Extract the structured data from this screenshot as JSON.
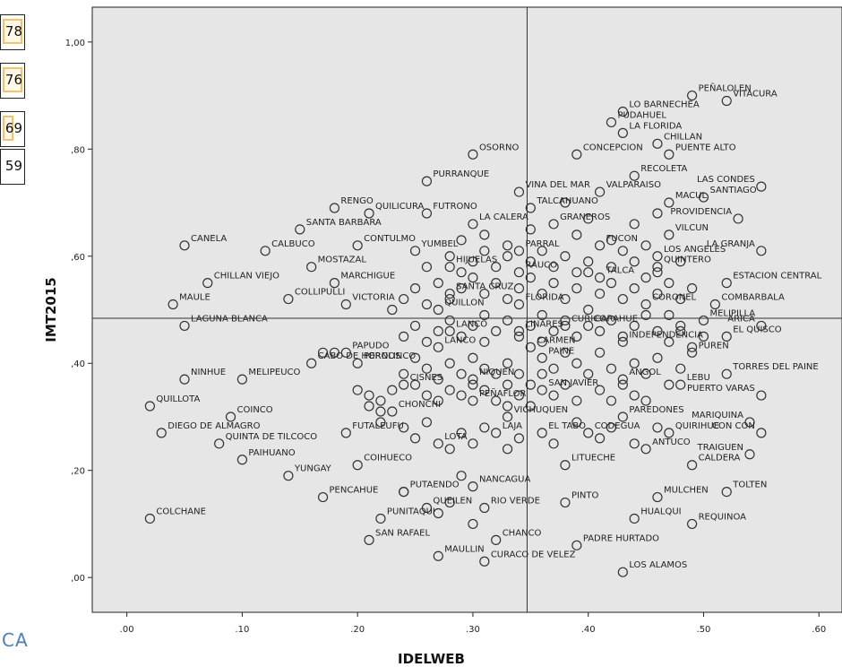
{
  "left_strip": {
    "cells": [
      "78",
      "76",
      "69",
      "59"
    ],
    "footer": "CA"
  },
  "chart_data": {
    "type": "scatter",
    "xlabel": "IDELWEB",
    "ylabel": "IMT2015",
    "xlim": [
      -0.03,
      0.62
    ],
    "ylim": [
      -0.065,
      1.065
    ],
    "x_ticks": [
      ".00",
      ".10",
      ".20",
      ".30",
      ".40",
      ".50",
      ".60"
    ],
    "y_ticks": [
      ",00",
      ",20",
      ",40",
      ",60",
      ",80",
      "1,00"
    ],
    "x_tick_values": [
      0.0,
      0.1,
      0.2,
      0.3,
      0.4,
      0.5,
      0.6
    ],
    "y_tick_values": [
      0.0,
      0.2,
      0.4,
      0.6,
      0.8,
      1.0
    ],
    "reference_lines": {
      "x": 0.347,
      "y": 0.484
    },
    "background": "#e6e6e6",
    "marker_color": "#333333",
    "points": [
      {
        "label": "PEÑALOLEN",
        "x": 0.49,
        "y": 0.9
      },
      {
        "label": "VITACURA",
        "x": 0.52,
        "y": 0.89
      },
      {
        "label": "LO BARNECHEA",
        "x": 0.43,
        "y": 0.87
      },
      {
        "label": "PUDAHUEL",
        "x": 0.42,
        "y": 0.85
      },
      {
        "label": "LA FLORIDA",
        "x": 0.43,
        "y": 0.83
      },
      {
        "label": "CHILLAN",
        "x": 0.46,
        "y": 0.81
      },
      {
        "label": "OSORNO",
        "x": 0.3,
        "y": 0.79
      },
      {
        "label": "CONCEPCION",
        "x": 0.39,
        "y": 0.79
      },
      {
        "label": "PUENTE ALTO",
        "x": 0.47,
        "y": 0.79
      },
      {
        "label": "RECOLETA",
        "x": 0.44,
        "y": 0.75
      },
      {
        "label": "PURRANQUE",
        "x": 0.26,
        "y": 0.74
      },
      {
        "label": "VINA DEL MAR",
        "x": 0.34,
        "y": 0.72
      },
      {
        "label": "LAS CONDES",
        "x": 0.55,
        "y": 0.73
      },
      {
        "label": "VALPARAISO",
        "x": 0.41,
        "y": 0.72
      },
      {
        "label": "SANTIAGO",
        "x": 0.5,
        "y": 0.71
      },
      {
        "label": "RENGO",
        "x": 0.18,
        "y": 0.69
      },
      {
        "label": "QUILICURA",
        "x": 0.21,
        "y": 0.68
      },
      {
        "label": "FUTRONO",
        "x": 0.26,
        "y": 0.68
      },
      {
        "label": "TALCAHUANO",
        "x": 0.35,
        "y": 0.69
      },
      {
        "label": "MACUL",
        "x": 0.47,
        "y": 0.7
      },
      {
        "label": "PROVIDENCIA",
        "x": 0.53,
        "y": 0.67
      },
      {
        "label": "SANTA BARBARA",
        "x": 0.15,
        "y": 0.65
      },
      {
        "label": "LA CALERA",
        "x": 0.3,
        "y": 0.66
      },
      {
        "label": "GRANEROS",
        "x": 0.37,
        "y": 0.66
      },
      {
        "label": "VILCUN",
        "x": 0.47,
        "y": 0.64
      },
      {
        "label": "CANELA",
        "x": 0.05,
        "y": 0.62
      },
      {
        "label": "CALBUCO",
        "x": 0.12,
        "y": 0.61
      },
      {
        "label": "CONTULMO",
        "x": 0.2,
        "y": 0.62
      },
      {
        "label": "YUMBEL",
        "x": 0.25,
        "y": 0.61
      },
      {
        "label": "PARRAL",
        "x": 0.34,
        "y": 0.61
      },
      {
        "label": "FUCON",
        "x": 0.41,
        "y": 0.62
      },
      {
        "label": "LA GRANJA",
        "x": 0.55,
        "y": 0.61
      },
      {
        "label": "MOSTAZAL",
        "x": 0.16,
        "y": 0.58
      },
      {
        "label": "HIJUELAS",
        "x": 0.28,
        "y": 0.58
      },
      {
        "label": "RAUCO",
        "x": 0.34,
        "y": 0.57
      },
      {
        "label": "LOS ANGELES",
        "x": 0.46,
        "y": 0.6
      },
      {
        "label": "QUINTERO",
        "x": 0.46,
        "y": 0.58
      },
      {
        "label": "CHILLAN VIEJO",
        "x": 0.07,
        "y": 0.55
      },
      {
        "label": "MARCHIGUE",
        "x": 0.18,
        "y": 0.55
      },
      {
        "label": "TALCA",
        "x": 0.41,
        "y": 0.56
      },
      {
        "label": "ESTACION CENTRAL",
        "x": 0.52,
        "y": 0.55
      },
      {
        "label": "SANTA CRUZ",
        "x": 0.28,
        "y": 0.53
      },
      {
        "label": "MAULE",
        "x": 0.04,
        "y": 0.51
      },
      {
        "label": "COLLIPULLI",
        "x": 0.14,
        "y": 0.52
      },
      {
        "label": "VICTORIA",
        "x": 0.19,
        "y": 0.51
      },
      {
        "label": "QUILLON",
        "x": 0.27,
        "y": 0.5
      },
      {
        "label": "FLORIDA",
        "x": 0.34,
        "y": 0.51
      },
      {
        "label": "CORONEL",
        "x": 0.45,
        "y": 0.51
      },
      {
        "label": "COMBARBALA",
        "x": 0.51,
        "y": 0.51
      },
      {
        "label": "LAGUNA BLANCA",
        "x": 0.05,
        "y": 0.47
      },
      {
        "label": "LANCO",
        "x": 0.28,
        "y": 0.46
      },
      {
        "label": "LINARES",
        "x": 0.34,
        "y": 0.46
      },
      {
        "label": "CURICO",
        "x": 0.38,
        "y": 0.47
      },
      {
        "label": "CARAHUE",
        "x": 0.4,
        "y": 0.47
      },
      {
        "label": "MELIPILLA",
        "x": 0.5,
        "y": 0.48
      },
      {
        "label": "ARICA",
        "x": 0.55,
        "y": 0.47
      },
      {
        "label": "PAPUDO",
        "x": 0.19,
        "y": 0.42
      },
      {
        "label": "LANCO",
        "x": 0.27,
        "y": 0.43
      },
      {
        "label": "CARMEN",
        "x": 0.35,
        "y": 0.43
      },
      {
        "label": "INDEPENDENCIA",
        "x": 0.43,
        "y": 0.44
      },
      {
        "label": "EL QUISCO",
        "x": 0.52,
        "y": 0.45
      },
      {
        "label": "PUREN",
        "x": 0.49,
        "y": 0.42
      },
      {
        "label": "CABO DE HORNOS",
        "x": 0.16,
        "y": 0.4
      },
      {
        "label": "PEROLINCO",
        "x": 0.2,
        "y": 0.4
      },
      {
        "label": "PAINE",
        "x": 0.36,
        "y": 0.41
      },
      {
        "label": "NINHUE",
        "x": 0.05,
        "y": 0.37
      },
      {
        "label": "MELIPEUCO",
        "x": 0.1,
        "y": 0.37
      },
      {
        "label": "CISNES",
        "x": 0.24,
        "y": 0.36
      },
      {
        "label": "NIQUEN",
        "x": 0.3,
        "y": 0.37
      },
      {
        "label": "SAN JAVIER",
        "x": 0.36,
        "y": 0.35
      },
      {
        "label": "ANGOL",
        "x": 0.43,
        "y": 0.37
      },
      {
        "label": "LEBU",
        "x": 0.48,
        "y": 0.36
      },
      {
        "label": "TORRES DEL PAINE",
        "x": 0.52,
        "y": 0.38
      },
      {
        "label": "PEÑAFLOR",
        "x": 0.3,
        "y": 0.33
      },
      {
        "label": "PUERTO VARAS",
        "x": 0.55,
        "y": 0.34
      },
      {
        "label": "QUILLOTA",
        "x": 0.02,
        "y": 0.32
      },
      {
        "label": "COINCO",
        "x": 0.09,
        "y": 0.3
      },
      {
        "label": "CHONCHI",
        "x": 0.23,
        "y": 0.31
      },
      {
        "label": "VICHUQUEN",
        "x": 0.33,
        "y": 0.3
      },
      {
        "label": "PAREDONES",
        "x": 0.43,
        "y": 0.3
      },
      {
        "label": "MARIQUINA",
        "x": 0.54,
        "y": 0.29
      },
      {
        "label": "DIEGO DE ALMAGRO",
        "x": 0.03,
        "y": 0.27
      },
      {
        "label": "FUTALEUFU",
        "x": 0.19,
        "y": 0.27
      },
      {
        "label": "LAJA",
        "x": 0.32,
        "y": 0.27
      },
      {
        "label": "EL TABO",
        "x": 0.36,
        "y": 0.27
      },
      {
        "label": "CODEGUA",
        "x": 0.4,
        "y": 0.27
      },
      {
        "label": "QUIRIHUE",
        "x": 0.47,
        "y": 0.27
      },
      {
        "label": "CON CON",
        "x": 0.55,
        "y": 0.27
      },
      {
        "label": "QUINTA DE TILCOCO",
        "x": 0.08,
        "y": 0.25
      },
      {
        "label": "LOTA",
        "x": 0.27,
        "y": 0.25
      },
      {
        "label": "ANTUCO",
        "x": 0.45,
        "y": 0.24
      },
      {
        "label": "TRAIGUEN",
        "x": 0.54,
        "y": 0.23
      },
      {
        "label": "PAIHUANO",
        "x": 0.1,
        "y": 0.22
      },
      {
        "label": "COIHUECO",
        "x": 0.2,
        "y": 0.21
      },
      {
        "label": "LITUECHE",
        "x": 0.38,
        "y": 0.21
      },
      {
        "label": "CALDERA",
        "x": 0.49,
        "y": 0.21
      },
      {
        "label": "YUNGAY",
        "x": 0.14,
        "y": 0.19
      },
      {
        "label": "NANCAGUA",
        "x": 0.3,
        "y": 0.17
      },
      {
        "label": "PUTAENDO",
        "x": 0.24,
        "y": 0.16
      },
      {
        "label": "PENCAHUE",
        "x": 0.17,
        "y": 0.15
      },
      {
        "label": "QUEILEN",
        "x": 0.26,
        "y": 0.13
      },
      {
        "label": "RIO VERDE",
        "x": 0.31,
        "y": 0.13
      },
      {
        "label": "PINTO",
        "x": 0.38,
        "y": 0.14
      },
      {
        "label": "MULCHEN",
        "x": 0.46,
        "y": 0.15
      },
      {
        "label": "TOLTEN",
        "x": 0.52,
        "y": 0.16
      },
      {
        "label": "COLCHANE",
        "x": 0.02,
        "y": 0.11
      },
      {
        "label": "PUNITAQUI",
        "x": 0.22,
        "y": 0.11
      },
      {
        "label": "HUALQUI",
        "x": 0.44,
        "y": 0.11
      },
      {
        "label": "REQUINOA",
        "x": 0.49,
        "y": 0.1
      },
      {
        "label": "SAN RAFAEL",
        "x": 0.21,
        "y": 0.07
      },
      {
        "label": "CHANCO",
        "x": 0.32,
        "y": 0.07
      },
      {
        "label": "PADRE HURTADO",
        "x": 0.39,
        "y": 0.06
      },
      {
        "label": "MAULLIN",
        "x": 0.27,
        "y": 0.04
      },
      {
        "label": "CURACO DE VELEZ",
        "x": 0.31,
        "y": 0.03
      },
      {
        "label": "LOS ALAMOS",
        "x": 0.43,
        "y": 0.01
      }
    ],
    "unlabeled_points": [
      [
        0.17,
        0.42
      ],
      [
        0.18,
        0.42
      ],
      [
        0.2,
        0.35
      ],
      [
        0.21,
        0.34
      ],
      [
        0.22,
        0.33
      ],
      [
        0.21,
        0.32
      ],
      [
        0.22,
        0.31
      ],
      [
        0.23,
        0.35
      ],
      [
        0.24,
        0.38
      ],
      [
        0.25,
        0.41
      ],
      [
        0.26,
        0.39
      ],
      [
        0.25,
        0.36
      ],
      [
        0.26,
        0.34
      ],
      [
        0.27,
        0.37
      ],
      [
        0.27,
        0.33
      ],
      [
        0.28,
        0.35
      ],
      [
        0.28,
        0.4
      ],
      [
        0.29,
        0.38
      ],
      [
        0.29,
        0.34
      ],
      [
        0.3,
        0.36
      ],
      [
        0.3,
        0.41
      ],
      [
        0.31,
        0.39
      ],
      [
        0.31,
        0.35
      ],
      [
        0.32,
        0.33
      ],
      [
        0.32,
        0.38
      ],
      [
        0.33,
        0.4
      ],
      [
        0.33,
        0.36
      ],
      [
        0.33,
        0.32
      ],
      [
        0.34,
        0.34
      ],
      [
        0.34,
        0.38
      ],
      [
        0.35,
        0.36
      ],
      [
        0.35,
        0.32
      ],
      [
        0.36,
        0.38
      ],
      [
        0.37,
        0.34
      ],
      [
        0.37,
        0.39
      ],
      [
        0.38,
        0.36
      ],
      [
        0.38,
        0.42
      ],
      [
        0.39,
        0.4
      ],
      [
        0.39,
        0.33
      ],
      [
        0.4,
        0.38
      ],
      [
        0.41,
        0.35
      ],
      [
        0.41,
        0.42
      ],
      [
        0.42,
        0.39
      ],
      [
        0.42,
        0.33
      ],
      [
        0.43,
        0.36
      ],
      [
        0.44,
        0.4
      ],
      [
        0.44,
        0.34
      ],
      [
        0.45,
        0.38
      ],
      [
        0.45,
        0.33
      ],
      [
        0.46,
        0.41
      ],
      [
        0.47,
        0.36
      ],
      [
        0.47,
        0.44
      ],
      [
        0.48,
        0.39
      ],
      [
        0.48,
        0.46
      ],
      [
        0.49,
        0.43
      ],
      [
        0.5,
        0.45
      ],
      [
        0.24,
        0.45
      ],
      [
        0.25,
        0.47
      ],
      [
        0.26,
        0.44
      ],
      [
        0.27,
        0.46
      ],
      [
        0.28,
        0.48
      ],
      [
        0.29,
        0.45
      ],
      [
        0.3,
        0.47
      ],
      [
        0.31,
        0.44
      ],
      [
        0.31,
        0.49
      ],
      [
        0.32,
        0.46
      ],
      [
        0.33,
        0.48
      ],
      [
        0.34,
        0.45
      ],
      [
        0.35,
        0.47
      ],
      [
        0.36,
        0.44
      ],
      [
        0.36,
        0.49
      ],
      [
        0.37,
        0.46
      ],
      [
        0.38,
        0.48
      ],
      [
        0.39,
        0.45
      ],
      [
        0.4,
        0.5
      ],
      [
        0.41,
        0.46
      ],
      [
        0.42,
        0.48
      ],
      [
        0.43,
        0.45
      ],
      [
        0.44,
        0.47
      ],
      [
        0.45,
        0.49
      ],
      [
        0.46,
        0.46
      ],
      [
        0.47,
        0.49
      ],
      [
        0.48,
        0.47
      ],
      [
        0.23,
        0.5
      ],
      [
        0.24,
        0.52
      ],
      [
        0.25,
        0.54
      ],
      [
        0.26,
        0.51
      ],
      [
        0.27,
        0.55
      ],
      [
        0.28,
        0.52
      ],
      [
        0.29,
        0.54
      ],
      [
        0.3,
        0.56
      ],
      [
        0.31,
        0.53
      ],
      [
        0.32,
        0.55
      ],
      [
        0.33,
        0.52
      ],
      [
        0.34,
        0.54
      ],
      [
        0.35,
        0.56
      ],
      [
        0.36,
        0.53
      ],
      [
        0.37,
        0.55
      ],
      [
        0.38,
        0.52
      ],
      [
        0.39,
        0.54
      ],
      [
        0.4,
        0.57
      ],
      [
        0.41,
        0.53
      ],
      [
        0.42,
        0.55
      ],
      [
        0.43,
        0.52
      ],
      [
        0.44,
        0.54
      ],
      [
        0.45,
        0.56
      ],
      [
        0.46,
        0.53
      ],
      [
        0.47,
        0.55
      ],
      [
        0.48,
        0.52
      ],
      [
        0.49,
        0.54
      ],
      [
        0.26,
        0.58
      ],
      [
        0.28,
        0.6
      ],
      [
        0.29,
        0.57
      ],
      [
        0.3,
        0.59
      ],
      [
        0.31,
        0.61
      ],
      [
        0.32,
        0.58
      ],
      [
        0.33,
        0.6
      ],
      [
        0.35,
        0.59
      ],
      [
        0.36,
        0.61
      ],
      [
        0.37,
        0.58
      ],
      [
        0.38,
        0.6
      ],
      [
        0.39,
        0.57
      ],
      [
        0.4,
        0.59
      ],
      [
        0.42,
        0.58
      ],
      [
        0.43,
        0.61
      ],
      [
        0.44,
        0.59
      ],
      [
        0.45,
        0.62
      ],
      [
        0.46,
        0.57
      ],
      [
        0.48,
        0.59
      ],
      [
        0.29,
        0.63
      ],
      [
        0.31,
        0.64
      ],
      [
        0.33,
        0.62
      ],
      [
        0.35,
        0.65
      ],
      [
        0.39,
        0.64
      ],
      [
        0.4,
        0.67
      ],
      [
        0.42,
        0.63
      ],
      [
        0.44,
        0.66
      ],
      [
        0.46,
        0.68
      ],
      [
        0.38,
        0.7
      ],
      [
        0.22,
        0.29
      ],
      [
        0.24,
        0.28
      ],
      [
        0.25,
        0.26
      ],
      [
        0.26,
        0.29
      ],
      [
        0.28,
        0.24
      ],
      [
        0.29,
        0.27
      ],
      [
        0.3,
        0.25
      ],
      [
        0.31,
        0.28
      ],
      [
        0.33,
        0.24
      ],
      [
        0.34,
        0.26
      ],
      [
        0.37,
        0.25
      ],
      [
        0.39,
        0.29
      ],
      [
        0.41,
        0.26
      ],
      [
        0.42,
        0.28
      ],
      [
        0.44,
        0.25
      ],
      [
        0.46,
        0.28
      ],
      [
        0.24,
        0.16
      ],
      [
        0.28,
        0.14
      ],
      [
        0.29,
        0.19
      ],
      [
        0.27,
        0.12
      ],
      [
        0.3,
        0.1
      ]
    ]
  }
}
